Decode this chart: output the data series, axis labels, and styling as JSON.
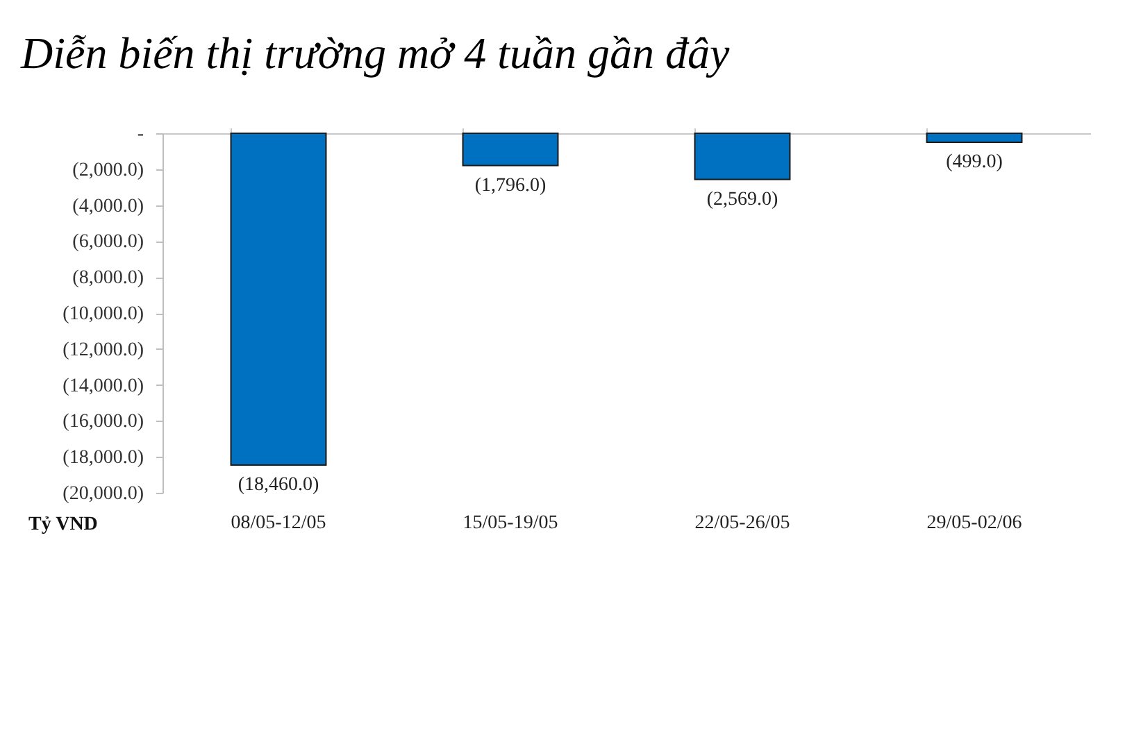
{
  "chart_data": {
    "type": "bar",
    "title": "Diễn biến thị trường mở 4 tuần gần đây",
    "ylabel": "Tỷ VND",
    "categories": [
      "08/05-12/05",
      "15/05-19/05",
      "22/05-26/05",
      "29/05-02/06"
    ],
    "values": [
      -18460,
      -1796,
      -2569,
      -499
    ],
    "color": "#0070c0",
    "value_labels": [
      "(18,460.0)",
      "(1,796.0)",
      "(2,569.0)",
      "(499.0)"
    ],
    "ylim": [
      -20000,
      0
    ],
    "yticks": [
      {
        "value": 0,
        "label": "-"
      },
      {
        "value": -2000,
        "label": "(2,000.0)"
      },
      {
        "value": -4000,
        "label": "(4,000.0)"
      },
      {
        "value": -6000,
        "label": "(6,000.0)"
      },
      {
        "value": -8000,
        "label": "(8,000.0)"
      },
      {
        "value": -10000,
        "label": "(10,000.0)"
      },
      {
        "value": -12000,
        "label": "(12,000.0)"
      },
      {
        "value": -14000,
        "label": "(14,000.0)"
      },
      {
        "value": -16000,
        "label": "(16,000.0)"
      },
      {
        "value": -18000,
        "label": "(18,000.0)"
      },
      {
        "value": -20000,
        "label": "(20,000.0)"
      }
    ]
  }
}
